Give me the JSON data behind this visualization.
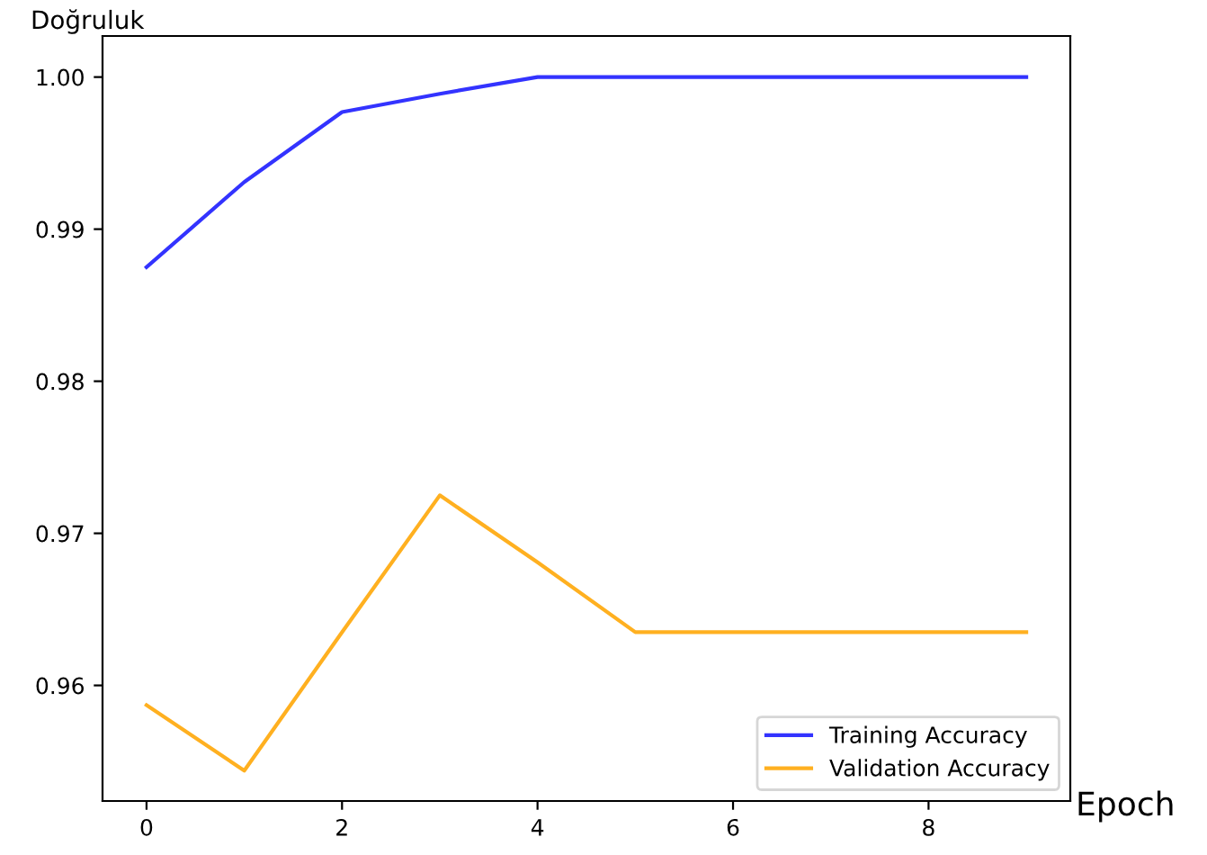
{
  "chart_data": {
    "type": "line",
    "xlabel": "Epoch",
    "ylabel": "Doğruluk",
    "x": [
      0,
      1,
      2,
      3,
      4,
      5,
      6,
      7,
      8,
      9
    ],
    "series": [
      {
        "name": "Training Accuracy",
        "color": "#3333ff",
        "values": [
          0.9875,
          0.9931,
          0.9977,
          0.9989,
          1.0,
          1.0,
          1.0,
          1.0,
          1.0,
          1.0
        ]
      },
      {
        "name": "Validation Accuracy",
        "color": "#ffb020",
        "values": [
          0.9587,
          0.9544,
          0.9635,
          0.9725,
          0.9681,
          0.9635,
          0.9635,
          0.9635,
          0.9635,
          0.9635
        ]
      }
    ],
    "xlim": [
      -0.45,
      9.45
    ],
    "ylim": [
      0.9524,
      1.0027
    ],
    "xticks": [
      0,
      2,
      4,
      6,
      8
    ],
    "yticks": [
      {
        "value": 0.96,
        "label": "0.96"
      },
      {
        "value": 0.97,
        "label": "0.97"
      },
      {
        "value": 0.98,
        "label": "0.98"
      },
      {
        "value": 0.99,
        "label": "0.99"
      },
      {
        "value": 1.0,
        "label": "1.00"
      }
    ],
    "legend": "bottom right",
    "grid": false
  }
}
